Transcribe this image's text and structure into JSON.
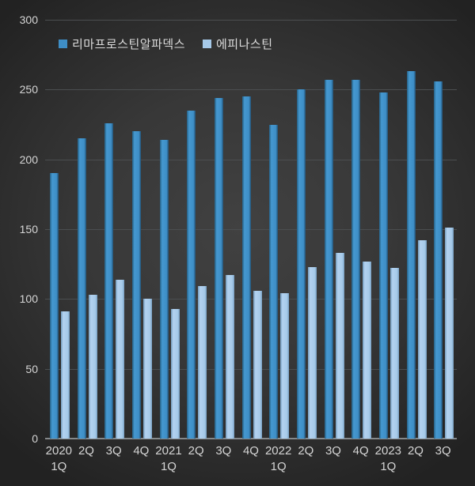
{
  "chart_data": {
    "type": "bar",
    "title": "",
    "legend_position": "top",
    "grid": true,
    "ylim": [
      0,
      300
    ],
    "yticks": [
      0,
      50,
      100,
      150,
      200,
      250,
      300
    ],
    "categories": [
      [
        "2020",
        "1Q"
      ],
      [
        "2Q"
      ],
      [
        "3Q"
      ],
      [
        "4Q"
      ],
      [
        "2021",
        "1Q"
      ],
      [
        "2Q"
      ],
      [
        "3Q"
      ],
      [
        "4Q"
      ],
      [
        "2022",
        "1Q"
      ],
      [
        "2Q"
      ],
      [
        "3Q"
      ],
      [
        "4Q"
      ],
      [
        "2023",
        "1Q"
      ],
      [
        "2Q"
      ],
      [
        "3Q"
      ]
    ],
    "series": [
      {
        "name": "리마프로스틴알파덱스",
        "color": "#3E8EC6",
        "values": [
          190,
          215,
          226,
          220,
          214,
          235,
          244,
          245,
          225,
          250,
          257,
          257,
          248,
          263,
          256
        ]
      },
      {
        "name": "에피나스틴",
        "color": "#A6C9E8",
        "values": [
          91,
          103,
          114,
          100,
          93,
          109,
          117,
          106,
          104,
          123,
          133,
          127,
          122,
          142,
          151
        ]
      }
    ]
  },
  "colors": {
    "background_center": "#3F3F3F",
    "background_edge": "#242424",
    "gridline": "#4B4E50",
    "axis_line": "#85888A",
    "text": "#D6D6D6"
  }
}
